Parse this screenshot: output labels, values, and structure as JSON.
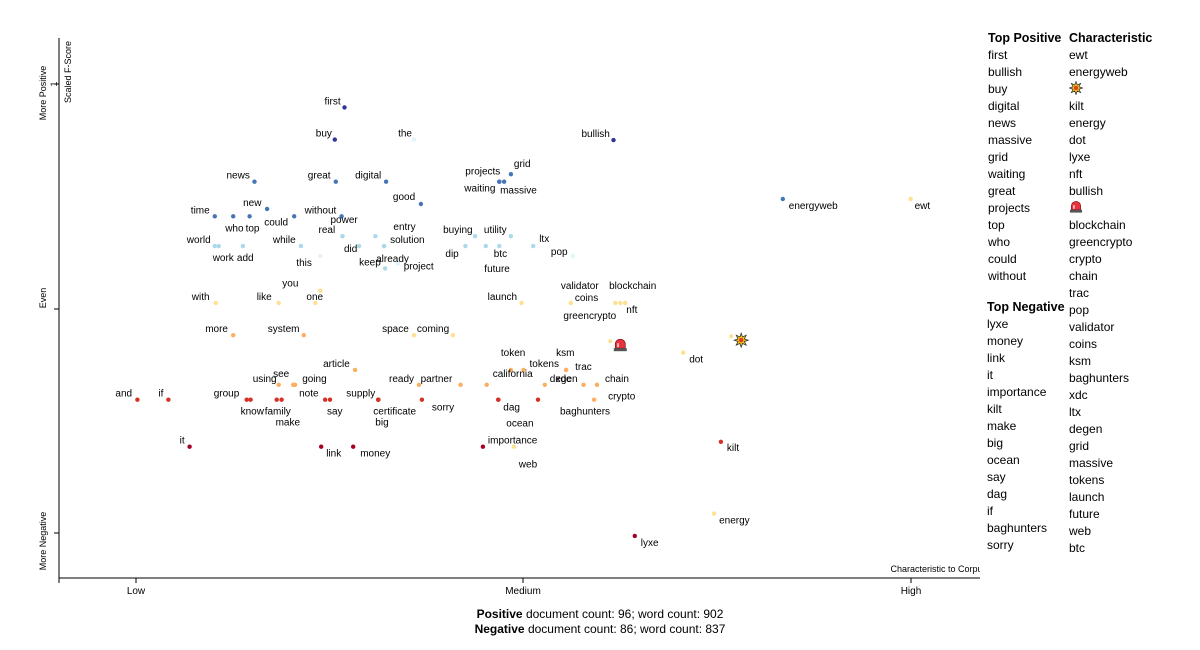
{
  "chart_data": {
    "type": "scatter",
    "x_axis": {
      "title": "Characteristic to Corpus",
      "ticks": [
        "Low",
        "Medium",
        "High"
      ],
      "tick_values": [
        0.1,
        0.5,
        0.9
      ],
      "range": [
        0.02,
        0.98
      ]
    },
    "y_axis": {
      "title": "Scaled F-Score",
      "title_mark": "1",
      "labels_top": "More Positive",
      "labels_mid": "Even",
      "labels_bottom": "More Negative",
      "range": [
        -0.05,
        1.04
      ]
    },
    "points": [
      {
        "word": "first",
        "x": 0.315,
        "y": 0.9,
        "color": "#313695",
        "lx": -20,
        "ly": -3
      },
      {
        "word": "buy",
        "x": 0.305,
        "y": 0.835,
        "color": "#313695",
        "lx": -19,
        "ly": -3
      },
      {
        "word": "the",
        "x": 0.387,
        "y": 0.835,
        "color": "#e0f3f8",
        "lx": -16,
        "ly": -3
      },
      {
        "word": "bullish",
        "x": 0.593,
        "y": 0.834,
        "color": "#313695",
        "lx": -32,
        "ly": -3
      },
      {
        "word": "grid",
        "x": 0.487,
        "y": 0.765,
        "color": "#4575b4",
        "lx": 3,
        "ly": -7
      },
      {
        "word": "projects",
        "x": 0.475,
        "y": 0.75,
        "color": "#4575b4",
        "lx": -34,
        "ly": -7
      },
      {
        "word": "waiting",
        "x": 0.475,
        "y": 0.75,
        "color": "#4575b4",
        "lx": -35,
        "ly": 10
      },
      {
        "word": "massive",
        "x": 0.48,
        "y": 0.75,
        "color": "#4575b4",
        "lx": -4,
        "ly": 12
      },
      {
        "word": "news",
        "x": 0.222,
        "y": 0.75,
        "color": "#4575b4",
        "lx": -28,
        "ly": -3
      },
      {
        "word": "great",
        "x": 0.306,
        "y": 0.75,
        "color": "#4575b4",
        "lx": -28,
        "ly": -3
      },
      {
        "word": "digital",
        "x": 0.358,
        "y": 0.75,
        "color": "#4575b4",
        "lx": -31,
        "ly": -3
      },
      {
        "word": "good",
        "x": 0.394,
        "y": 0.705,
        "color": "#4575b4",
        "lx": -28,
        "ly": -4
      },
      {
        "word": "energyweb",
        "x": 0.768,
        "y": 0.715,
        "color": "#4575b4",
        "lx": 6,
        "ly": 10
      },
      {
        "word": "ewt",
        "x": 0.9,
        "y": 0.715,
        "color": "#fee090",
        "lx": 4,
        "ly": 10
      },
      {
        "word": "time",
        "x": 0.181,
        "y": 0.68,
        "color": "#4575b4",
        "lx": -24,
        "ly": -3
      },
      {
        "word": "who",
        "x": 0.2,
        "y": 0.68,
        "color": "#4575b4",
        "lx": -8,
        "ly": 15
      },
      {
        "word": "top",
        "x": 0.217,
        "y": 0.68,
        "color": "#4575b4",
        "lx": -4,
        "ly": 15
      },
      {
        "word": "new",
        "x": 0.235,
        "y": 0.695,
        "color": "#4575b4",
        "lx": -24,
        "ly": -3
      },
      {
        "word": "could",
        "x": 0.263,
        "y": 0.68,
        "color": "#4575b4",
        "lx": -30,
        "ly": 9
      },
      {
        "word": "without",
        "x": 0.312,
        "y": 0.68,
        "color": "#4575b4",
        "lx": -37,
        "ly": -3
      },
      {
        "word": "world",
        "x": 0.181,
        "y": 0.62,
        "color": "#abd9e9",
        "lx": -28,
        "ly": -3
      },
      {
        "word": "work",
        "x": 0.185,
        "y": 0.62,
        "color": "#abd9e9",
        "lx": -6,
        "ly": 15
      },
      {
        "word": "add",
        "x": 0.21,
        "y": 0.62,
        "color": "#abd9e9",
        "lx": -6,
        "ly": 15
      },
      {
        "word": "while",
        "x": 0.27,
        "y": 0.62,
        "color": "#abd9e9",
        "lx": -28,
        "ly": -3
      },
      {
        "word": "power",
        "x": 0.313,
        "y": 0.64,
        "color": "#abd9e9",
        "lx": -12,
        "ly": -13
      },
      {
        "word": "real",
        "x": 0.313,
        "y": 0.64,
        "color": "#abd9e9",
        "lx": -24,
        "ly": -3
      },
      {
        "word": "did",
        "x": 0.33,
        "y": 0.62,
        "color": "#abd9e9",
        "lx": -15,
        "ly": 6
      },
      {
        "word": "entry",
        "x": 0.347,
        "y": 0.64,
        "color": "#abd9e9",
        "lx": 18,
        "ly": -6
      },
      {
        "word": "solution",
        "x": 0.356,
        "y": 0.62,
        "color": "#abd9e9",
        "lx": 6,
        "ly": -3
      },
      {
        "word": "already",
        "x": 0.356,
        "y": 0.62,
        "color": "#abd9e9",
        "lx": -8,
        "ly": 16
      },
      {
        "word": "this",
        "x": 0.29,
        "y": 0.6,
        "color": "#e0f3f8",
        "lx": -24,
        "ly": 10
      },
      {
        "word": "keep",
        "x": 0.357,
        "y": 0.575,
        "color": "#abd9e9",
        "lx": -26,
        "ly": -3
      },
      {
        "word": "project",
        "x": 0.37,
        "y": 0.585,
        "color": "#e0f3f8",
        "lx": 6,
        "ly": 6
      },
      {
        "word": "buying",
        "x": 0.45,
        "y": 0.64,
        "color": "#abd9e9",
        "lx": -32,
        "ly": -3
      },
      {
        "word": "utility",
        "x": 0.487,
        "y": 0.64,
        "color": "#abd9e9",
        "lx": -27,
        "ly": -3
      },
      {
        "word": "dip",
        "x": 0.44,
        "y": 0.62,
        "color": "#abd9e9",
        "lx": -20,
        "ly": 11
      },
      {
        "word": "btc",
        "x": 0.461,
        "y": 0.62,
        "color": "#abd9e9",
        "lx": 8,
        "ly": 11
      },
      {
        "word": "future",
        "x": 0.475,
        "y": 0.62,
        "color": "#abd9e9",
        "lx": -15,
        "ly": 26
      },
      {
        "word": "ltx",
        "x": 0.51,
        "y": 0.62,
        "color": "#abd9e9",
        "lx": 6,
        "ly": -4
      },
      {
        "word": "pop",
        "x": 0.551,
        "y": 0.6,
        "color": "#e0f3f8",
        "lx": -22,
        "ly": -1
      },
      {
        "word": "you",
        "x": 0.29,
        "y": 0.53,
        "color": "#fee090",
        "lx": -38,
        "ly": -4
      },
      {
        "word": "with",
        "x": 0.182,
        "y": 0.505,
        "color": "#fee090",
        "lx": -24,
        "ly": -3
      },
      {
        "word": "like",
        "x": 0.247,
        "y": 0.505,
        "color": "#fee090",
        "lx": -22,
        "ly": -3
      },
      {
        "word": "one",
        "x": 0.285,
        "y": 0.505,
        "color": "#fee090",
        "lx": -9,
        "ly": -3
      },
      {
        "word": "launch",
        "x": 0.498,
        "y": 0.505,
        "color": "#fee090",
        "lx": -34,
        "ly": -3
      },
      {
        "word": "validator",
        "x": 0.549,
        "y": 0.505,
        "color": "#fee090",
        "lx": -10,
        "ly": -14
      },
      {
        "word": "coins",
        "x": 0.549,
        "y": 0.505,
        "color": "#fee090",
        "lx": 4,
        "ly": -2
      },
      {
        "word": "blockchain",
        "x": 0.605,
        "y": 0.505,
        "color": "#fee090",
        "lx": -16,
        "ly": -14
      },
      {
        "word": "nft",
        "x": 0.6,
        "y": 0.505,
        "color": "#fee090",
        "lx": 6,
        "ly": 10
      },
      {
        "word": "greencrypto",
        "x": 0.595,
        "y": 0.505,
        "color": "#fee090",
        "lx": -52,
        "ly": 16
      },
      {
        "word": "more",
        "x": 0.2,
        "y": 0.44,
        "color": "#fdae61",
        "lx": -28,
        "ly": -3
      },
      {
        "word": "system",
        "x": 0.273,
        "y": 0.44,
        "color": "#fdae61",
        "lx": -36,
        "ly": -3
      },
      {
        "word": "space",
        "x": 0.387,
        "y": 0.44,
        "color": "#fee090",
        "lx": -32,
        "ly": -3
      },
      {
        "word": "coming",
        "x": 0.427,
        "y": 0.44,
        "color": "#fee090",
        "lx": -36,
        "ly": -3
      },
      {
        "word": "dot",
        "x": 0.665,
        "y": 0.405,
        "color": "#fee090",
        "lx": 6,
        "ly": 10
      },
      {
        "word": "token",
        "x": 0.487,
        "y": 0.37,
        "color": "#fdae61",
        "lx": -10,
        "ly": -14
      },
      {
        "word": "tokens",
        "x": 0.5,
        "y": 0.37,
        "color": "#fdae61",
        "lx": 6,
        "ly": -3
      },
      {
        "word": "ksm",
        "x": 0.544,
        "y": 0.37,
        "color": "#fdae61",
        "lx": -10,
        "ly": -14
      },
      {
        "word": "trac",
        "x": 0.544,
        "y": 0.37,
        "color": "#fdae61",
        "lx": 9,
        "ly": 0
      },
      {
        "word": "article",
        "x": 0.326,
        "y": 0.37,
        "color": "#fdae61",
        "lx": -32,
        "ly": -3
      },
      {
        "word": "using",
        "x": 0.247,
        "y": 0.34,
        "color": "#fdae61",
        "lx": -26,
        "ly": -3
      },
      {
        "word": "see",
        "x": 0.264,
        "y": 0.34,
        "color": "#fdae61",
        "lx": -22,
        "ly": -8
      },
      {
        "word": "going",
        "x": 0.262,
        "y": 0.34,
        "color": "#fdae61",
        "lx": 9,
        "ly": -3
      },
      {
        "word": "ready",
        "x": 0.392,
        "y": 0.34,
        "color": "#fdae61",
        "lx": -30,
        "ly": -3
      },
      {
        "word": "partner",
        "x": 0.435,
        "y": 0.34,
        "color": "#fdae61",
        "lx": -40,
        "ly": -3
      },
      {
        "word": "california",
        "x": 0.462,
        "y": 0.34,
        "color": "#fdae61",
        "lx": 6,
        "ly": -8
      },
      {
        "word": "degen",
        "x": 0.522,
        "y": 0.34,
        "color": "#fdae61",
        "lx": 5,
        "ly": -3
      },
      {
        "word": "xdc",
        "x": 0.562,
        "y": 0.34,
        "color": "#fdae61",
        "lx": -28,
        "ly": -3
      },
      {
        "word": "chain",
        "x": 0.576,
        "y": 0.34,
        "color": "#fdae61",
        "lx": 8,
        "ly": -3
      },
      {
        "word": "crypto",
        "x": 0.573,
        "y": 0.31,
        "color": "#fdae61",
        "lx": 14,
        "ly": 0
      },
      {
        "word": "and",
        "x": 0.101,
        "y": 0.31,
        "color": "#d73027",
        "lx": -22,
        "ly": -3
      },
      {
        "word": "if",
        "x": 0.133,
        "y": 0.31,
        "color": "#d73027",
        "lx": -10,
        "ly": -3
      },
      {
        "word": "group",
        "x": 0.214,
        "y": 0.31,
        "color": "#d73027",
        "lx": -33,
        "ly": -3
      },
      {
        "word": "know",
        "x": 0.218,
        "y": 0.31,
        "color": "#d73027",
        "lx": -10,
        "ly": 15
      },
      {
        "word": "family",
        "x": 0.245,
        "y": 0.31,
        "color": "#d73027",
        "lx": -12,
        "ly": 15
      },
      {
        "word": "make",
        "x": 0.25,
        "y": 0.31,
        "color": "#d73027",
        "lx": -6,
        "ly": 26
      },
      {
        "word": "note",
        "x": 0.295,
        "y": 0.31,
        "color": "#d73027",
        "lx": -26,
        "ly": -3
      },
      {
        "word": "say",
        "x": 0.3,
        "y": 0.31,
        "color": "#d73027",
        "lx": -3,
        "ly": 15
      },
      {
        "word": "supply",
        "x": 0.35,
        "y": 0.31,
        "color": "#d73027",
        "lx": -32,
        "ly": -3
      },
      {
        "word": "certificate",
        "x": 0.35,
        "y": 0.31,
        "color": "#d73027",
        "lx": -5,
        "ly": 15
      },
      {
        "word": "big",
        "x": 0.35,
        "y": 0.31,
        "color": "#d73027",
        "lx": -3,
        "ly": 26
      },
      {
        "word": "sorry",
        "x": 0.395,
        "y": 0.31,
        "color": "#d73027",
        "lx": 10,
        "ly": 11
      },
      {
        "word": "dag",
        "x": 0.474,
        "y": 0.31,
        "color": "#d73027",
        "lx": 5,
        "ly": 11
      },
      {
        "word": "ocean",
        "x": 0.474,
        "y": 0.31,
        "color": "#d73027",
        "lx": 8,
        "ly": 27
      },
      {
        "word": "baghunters",
        "x": 0.515,
        "y": 0.31,
        "color": "#d73027",
        "lx": 22,
        "ly": 15
      },
      {
        "word": "it",
        "x": 0.155,
        "y": 0.215,
        "color": "#a50026",
        "lx": -10,
        "ly": -3
      },
      {
        "word": "link",
        "x": 0.291,
        "y": 0.215,
        "color": "#a50026",
        "lx": 5,
        "ly": 10
      },
      {
        "word": "money",
        "x": 0.324,
        "y": 0.215,
        "color": "#a50026",
        "lx": 7,
        "ly": 10
      },
      {
        "word": "importance",
        "x": 0.458,
        "y": 0.215,
        "color": "#a50026",
        "lx": 5,
        "ly": -3
      },
      {
        "word": "web",
        "x": 0.49,
        "y": 0.215,
        "color": "#fee090",
        "lx": 5,
        "ly": 21
      },
      {
        "word": "kilt",
        "x": 0.704,
        "y": 0.225,
        "color": "#d73027",
        "lx": 6,
        "ly": 9
      },
      {
        "word": "energy",
        "x": 0.697,
        "y": 0.08,
        "color": "#fee090",
        "lx": 5,
        "ly": 10
      },
      {
        "word": "lyxe",
        "x": 0.615,
        "y": 0.035,
        "color": "#a50026",
        "lx": 6,
        "ly": 10
      }
    ],
    "emoji_points": [
      {
        "name": "collision-emoji",
        "x": 0.725,
        "y": 0.43
      },
      {
        "name": "police-light-emoji",
        "x": 0.6,
        "y": 0.42
      }
    ]
  },
  "lists": {
    "top_positive_title": "Top Positive",
    "top_positive": [
      "first",
      "bullish",
      "buy",
      "digital",
      "news",
      "massive",
      "grid",
      "waiting",
      "great",
      "projects",
      "top",
      "who",
      "could",
      "without"
    ],
    "top_negative_title": "Top Negative",
    "top_negative": [
      "lyxe",
      "money",
      "link",
      "it",
      "importance",
      "kilt",
      "make",
      "big",
      "ocean",
      "say",
      "dag",
      "if",
      "baghunters",
      "sorry"
    ],
    "characteristic_title": "Characteristic",
    "characteristic": [
      "ewt",
      "energyweb",
      "collision-emoji",
      "kilt",
      "energy",
      "dot",
      "lyxe",
      "nft",
      "bullish",
      "police-light-emoji",
      "blockchain",
      "greencrypto",
      "crypto",
      "chain",
      "trac",
      "pop",
      "validator",
      "coins",
      "ksm",
      "baghunters",
      "xdc",
      "ltx",
      "degen",
      "grid",
      "massive",
      "tokens",
      "launch",
      "future",
      "web",
      "btc"
    ]
  },
  "footer": {
    "positive_label": "Positive",
    "positive_text": " document count: 96; word count: 902",
    "negative_label": "Negative",
    "negative_text": " document count: 86; word count: 837"
  }
}
